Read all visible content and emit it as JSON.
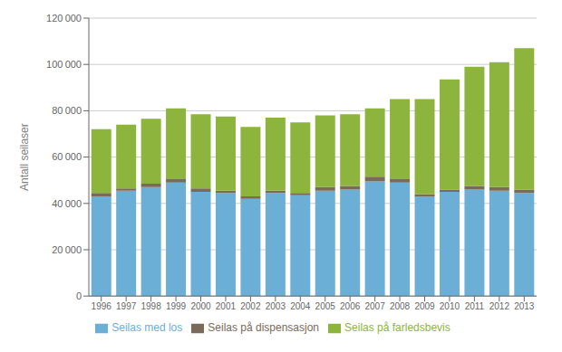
{
  "chart_data": {
    "type": "bar",
    "stacked": true,
    "categories": [
      "1996",
      "1997",
      "1998",
      "1999",
      "2000",
      "2001",
      "2002",
      "2003",
      "2004",
      "2005",
      "2006",
      "2007",
      "2008",
      "2009",
      "2010",
      "2011",
      "2012",
      "2013"
    ],
    "series": [
      {
        "name": "Seilas med los",
        "color": "#6baed6",
        "values": [
          43000,
          45500,
          47000,
          49000,
          45000,
          44500,
          42000,
          44500,
          43500,
          45500,
          46000,
          49500,
          49000,
          43000,
          45000,
          46000,
          45500,
          44500
        ]
      },
      {
        "name": "Seilas på dispensasjon",
        "color": "#7a6a5a",
        "values": [
          1500,
          1000,
          1500,
          1500,
          1500,
          1000,
          1000,
          1000,
          1000,
          1500,
          1500,
          2000,
          1500,
          1000,
          1000,
          1500,
          1500,
          1500
        ]
      },
      {
        "name": "Seilas på farledsbevis",
        "color": "#8db53e",
        "values": [
          27500,
          27500,
          28000,
          30500,
          32000,
          32000,
          30000,
          31500,
          30500,
          31000,
          31000,
          29500,
          34500,
          41000,
          47500,
          51500,
          54000,
          61000
        ]
      }
    ],
    "ylabel": "Antall seilaser",
    "ylim": [
      0,
      120000
    ],
    "yticks": [
      0,
      {
        "value": 20000,
        "label": "20 000"
      },
      {
        "value": 40000,
        "label": "40 000"
      },
      {
        "value": 60000,
        "label": "60 000"
      },
      {
        "value": 80000,
        "label": "80 000"
      },
      {
        "value": 100000,
        "label": "100 000"
      },
      {
        "value": 120000,
        "label": "120 000"
      }
    ],
    "grid": true,
    "legend": "bottom"
  }
}
